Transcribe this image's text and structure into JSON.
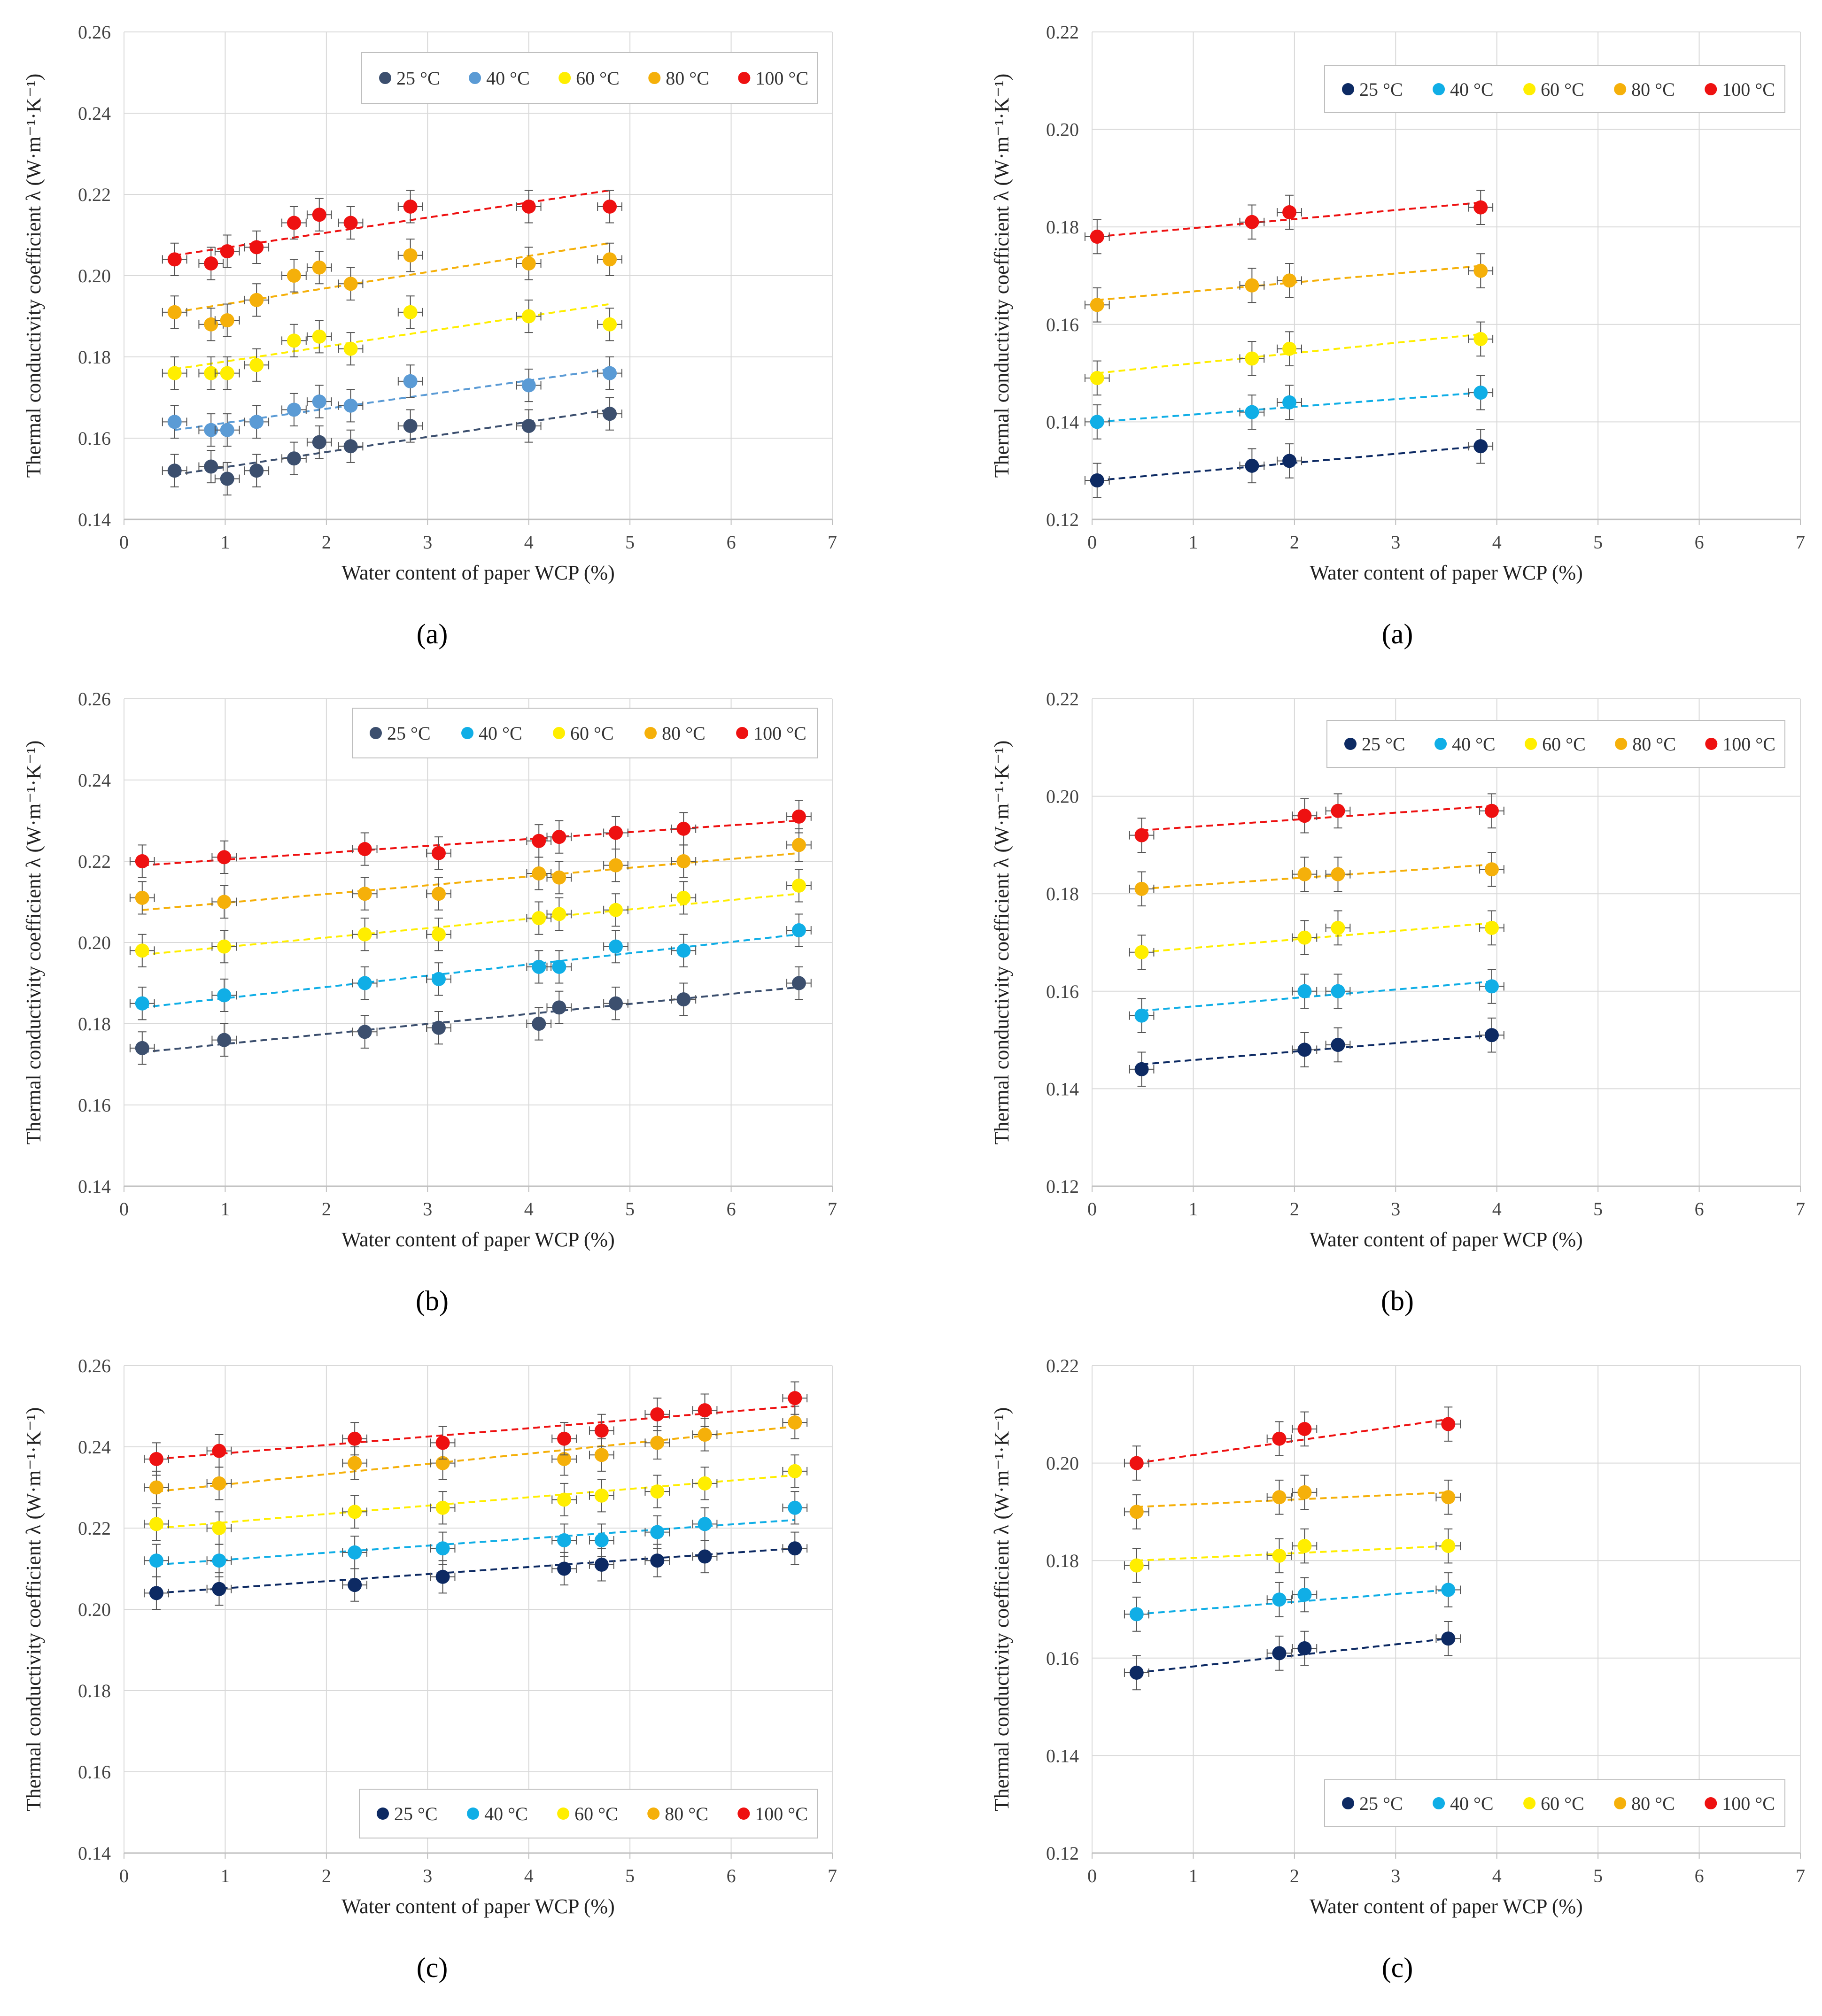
{
  "colors": {
    "25": "#1f3b6b",
    "40": "#2ab0e8",
    "60": "#ffee00",
    "80": "#f5b00a",
    "100": "#ee1111",
    "grid": "#d9d9d9",
    "axis": "#bfbfbf",
    "error": "#555555"
  },
  "chart_data": [
    {
      "id": "left-a",
      "type": "scatter",
      "caption": "(a)",
      "xlabel": "Water content of paper WCP (%)",
      "ylabel": "Thermal conductivity coefficient λ (W·m⁻¹·K⁻¹)",
      "xlim": [
        0,
        7
      ],
      "ylim": [
        0.14,
        0.26
      ],
      "xticks": [
        "0",
        "1",
        "2",
        "3",
        "4",
        "5",
        "6",
        "7"
      ],
      "yticks": [
        "0.14",
        "0.16",
        "0.18",
        "0.20",
        "0.22",
        "0.24",
        "0.26"
      ],
      "legend_position": "top-right",
      "series": [
        {
          "name": "25 °C",
          "color": "#3c4f6e",
          "x": [
            0.5,
            0.86,
            1.02,
            1.31,
            1.68,
            1.93,
            2.24,
            2.83,
            4.0,
            4.8
          ],
          "y": [
            0.152,
            0.153,
            0.15,
            0.152,
            0.155,
            0.159,
            0.158,
            0.163,
            0.163,
            0.166
          ],
          "fit": [
            0.151,
            0.167
          ]
        },
        {
          "name": "40 °C",
          "color": "#5b9bd5",
          "x": [
            0.5,
            0.86,
            1.02,
            1.31,
            1.68,
            1.93,
            2.24,
            2.83,
            4.0,
            4.8
          ],
          "y": [
            0.164,
            0.162,
            0.162,
            0.164,
            0.167,
            0.169,
            0.168,
            0.174,
            0.173,
            0.176
          ],
          "fit": [
            0.162,
            0.177
          ]
        },
        {
          "name": "60 °C",
          "color": "#ffee00",
          "x": [
            0.5,
            0.86,
            1.02,
            1.31,
            1.68,
            1.93,
            2.24,
            2.83,
            4.0,
            4.8
          ],
          "y": [
            0.176,
            0.176,
            0.176,
            0.178,
            0.184,
            0.185,
            0.182,
            0.191,
            0.19,
            0.188
          ],
          "fit": [
            0.177,
            0.193
          ]
        },
        {
          "name": "80 °C",
          "color": "#f5b00a",
          "x": [
            0.5,
            0.86,
            1.02,
            1.31,
            1.68,
            1.93,
            2.24,
            2.83,
            4.0,
            4.8
          ],
          "y": [
            0.191,
            0.188,
            0.189,
            0.194,
            0.2,
            0.202,
            0.198,
            0.205,
            0.203,
            0.204
          ],
          "fit": [
            0.191,
            0.208
          ]
        },
        {
          "name": "100 °C",
          "color": "#ee1111",
          "x": [
            0.5,
            0.86,
            1.02,
            1.31,
            1.68,
            1.93,
            2.24,
            2.83,
            4.0,
            4.8
          ],
          "y": [
            0.204,
            0.203,
            0.206,
            0.207,
            0.213,
            0.215,
            0.213,
            0.217,
            0.217,
            0.217
          ],
          "fit": [
            0.205,
            0.221
          ]
        }
      ]
    },
    {
      "id": "right-a",
      "type": "scatter",
      "caption": "(a)",
      "xlabel": "Water content of paper WCP (%)",
      "ylabel": "Thermal conductivity coefficient λ (W·m⁻¹·K⁻¹)",
      "xlim": [
        0,
        7
      ],
      "ylim": [
        0.12,
        0.22
      ],
      "xticks": [
        "0",
        "1",
        "2",
        "3",
        "4",
        "5",
        "6",
        "7"
      ],
      "yticks": [
        "0.12",
        "0.14",
        "0.16",
        "0.18",
        "0.20",
        "0.22"
      ],
      "legend_position": "top-right",
      "series": [
        {
          "name": "25 °C",
          "color": "#0d2a63",
          "x": [
            0.05,
            1.58,
            1.95,
            3.84
          ],
          "y": [
            0.128,
            0.131,
            0.132,
            0.135
          ],
          "fit": [
            0.128,
            0.135
          ]
        },
        {
          "name": "40 °C",
          "color": "#10aee6",
          "x": [
            0.05,
            1.58,
            1.95,
            3.84
          ],
          "y": [
            0.14,
            0.142,
            0.144,
            0.146
          ],
          "fit": [
            0.14,
            0.146
          ]
        },
        {
          "name": "60 °C",
          "color": "#ffee00",
          "x": [
            0.05,
            1.58,
            1.95,
            3.84
          ],
          "y": [
            0.149,
            0.153,
            0.155,
            0.157
          ],
          "fit": [
            0.15,
            0.158
          ]
        },
        {
          "name": "80 °C",
          "color": "#f5b00a",
          "x": [
            0.05,
            1.58,
            1.95,
            3.84
          ],
          "y": [
            0.164,
            0.168,
            0.169,
            0.171
          ],
          "fit": [
            0.165,
            0.172
          ]
        },
        {
          "name": "100 °C",
          "color": "#ee1111",
          "x": [
            0.05,
            1.58,
            1.95,
            3.84
          ],
          "y": [
            0.178,
            0.181,
            0.183,
            0.184
          ],
          "fit": [
            0.178,
            0.185
          ]
        }
      ]
    },
    {
      "id": "left-b",
      "type": "scatter",
      "caption": "(b)",
      "xlabel": "Water content of paper WCP (%)",
      "ylabel": "Thermal conductivity coefficient λ (W·m⁻¹·K⁻¹)",
      "xlim": [
        0,
        7
      ],
      "ylim": [
        0.14,
        0.26
      ],
      "xticks": [
        "0",
        "1",
        "2",
        "3",
        "4",
        "5",
        "6",
        "7"
      ],
      "yticks": [
        "0.14",
        "0.16",
        "0.18",
        "0.20",
        "0.22",
        "0.24",
        "0.26"
      ],
      "legend_position": "top-right",
      "series": [
        {
          "name": "25 °C",
          "color": "#3c4f6e",
          "x": [
            0.18,
            0.99,
            2.38,
            3.11,
            4.1,
            4.3,
            4.86,
            5.53,
            6.67
          ],
          "y": [
            0.174,
            0.176,
            0.178,
            0.179,
            0.18,
            0.184,
            0.185,
            0.186,
            0.19
          ],
          "fit": [
            0.173,
            0.189
          ]
        },
        {
          "name": "40 °C",
          "color": "#10aee6",
          "x": [
            0.18,
            0.99,
            2.38,
            3.11,
            4.1,
            4.3,
            4.86,
            5.53,
            6.67
          ],
          "y": [
            0.185,
            0.187,
            0.19,
            0.191,
            0.194,
            0.194,
            0.199,
            0.198,
            0.203
          ],
          "fit": [
            0.184,
            0.202
          ]
        },
        {
          "name": "60 °C",
          "color": "#ffee00",
          "x": [
            0.18,
            0.99,
            2.38,
            3.11,
            4.1,
            4.3,
            4.86,
            5.53,
            6.67
          ],
          "y": [
            0.198,
            0.199,
            0.202,
            0.202,
            0.206,
            0.207,
            0.208,
            0.211,
            0.214
          ],
          "fit": [
            0.197,
            0.212
          ]
        },
        {
          "name": "80 °C",
          "color": "#f5b00a",
          "x": [
            0.18,
            0.99,
            2.38,
            3.11,
            4.1,
            4.3,
            4.86,
            5.53,
            6.67
          ],
          "y": [
            0.211,
            0.21,
            0.212,
            0.212,
            0.217,
            0.216,
            0.219,
            0.22,
            0.224
          ],
          "fit": [
            0.208,
            0.222
          ]
        },
        {
          "name": "100 °C",
          "color": "#ee1111",
          "x": [
            0.18,
            0.99,
            2.38,
            3.11,
            4.1,
            4.3,
            4.86,
            5.53,
            6.67
          ],
          "y": [
            0.22,
            0.221,
            0.223,
            0.222,
            0.225,
            0.226,
            0.227,
            0.228,
            0.231
          ],
          "fit": [
            0.219,
            0.23
          ]
        }
      ]
    },
    {
      "id": "right-b",
      "type": "scatter",
      "caption": "(b)",
      "xlabel": "Water content of paper WCP (%)",
      "ylabel": "Thermal conductivity coefficient λ (W·m⁻¹·K⁻¹)",
      "xlim": [
        0,
        7
      ],
      "ylim": [
        0.12,
        0.22
      ],
      "xticks": [
        "0",
        "1",
        "2",
        "3",
        "4",
        "5",
        "6",
        "7"
      ],
      "yticks": [
        "0.12",
        "0.14",
        "0.16",
        "0.18",
        "0.20",
        "0.22"
      ],
      "legend_position": "top-right",
      "series": [
        {
          "name": "25 °C",
          "color": "#0d2a63",
          "x": [
            0.49,
            2.1,
            2.43,
            3.95
          ],
          "y": [
            0.144,
            0.148,
            0.149,
            0.151
          ],
          "fit": [
            0.145,
            0.151
          ]
        },
        {
          "name": "40 °C",
          "color": "#10aee6",
          "x": [
            0.49,
            2.1,
            2.43,
            3.95
          ],
          "y": [
            0.155,
            0.16,
            0.16,
            0.161
          ],
          "fit": [
            0.156,
            0.162
          ]
        },
        {
          "name": "60 °C",
          "color": "#ffee00",
          "x": [
            0.49,
            2.1,
            2.43,
            3.95
          ],
          "y": [
            0.168,
            0.171,
            0.173,
            0.173
          ],
          "fit": [
            0.168,
            0.174
          ]
        },
        {
          "name": "80 °C",
          "color": "#f5b00a",
          "x": [
            0.49,
            2.1,
            2.43,
            3.95
          ],
          "y": [
            0.181,
            0.184,
            0.184,
            0.185
          ],
          "fit": [
            0.181,
            0.186
          ]
        },
        {
          "name": "100 °C",
          "color": "#ee1111",
          "x": [
            0.49,
            2.1,
            2.43,
            3.95
          ],
          "y": [
            0.192,
            0.196,
            0.197,
            0.197
          ],
          "fit": [
            0.193,
            0.198
          ]
        }
      ]
    },
    {
      "id": "left-c",
      "type": "scatter",
      "caption": "(c)",
      "xlabel": "Water content of paper WCP (%)",
      "ylabel": "Thermal conductivity coefficient λ (W·m⁻¹·K⁻¹)",
      "xlim": [
        0,
        7
      ],
      "ylim": [
        0.14,
        0.26
      ],
      "xticks": [
        "0",
        "1",
        "2",
        "3",
        "4",
        "5",
        "6",
        "7"
      ],
      "yticks": [
        "0.14",
        "0.16",
        "0.18",
        "0.20",
        "0.22",
        "0.24",
        "0.26"
      ],
      "legend_position": "bottom-right",
      "series": [
        {
          "name": "25 °C",
          "color": "#0d2a63",
          "x": [
            0.32,
            0.94,
            2.28,
            3.15,
            4.35,
            4.72,
            5.27,
            5.74,
            6.63
          ],
          "y": [
            0.204,
            0.205,
            0.206,
            0.208,
            0.21,
            0.211,
            0.212,
            0.213,
            0.215
          ],
          "fit": [
            0.204,
            0.215
          ]
        },
        {
          "name": "40 °C",
          "color": "#10aee6",
          "x": [
            0.32,
            0.94,
            2.28,
            3.15,
            4.35,
            4.72,
            5.27,
            5.74,
            6.63
          ],
          "y": [
            0.212,
            0.212,
            0.214,
            0.215,
            0.217,
            0.217,
            0.219,
            0.221,
            0.225
          ],
          "fit": [
            0.211,
            0.222
          ]
        },
        {
          "name": "60 °C",
          "color": "#ffee00",
          "x": [
            0.32,
            0.94,
            2.28,
            3.15,
            4.35,
            4.72,
            5.27,
            5.74,
            6.63
          ],
          "y": [
            0.221,
            0.22,
            0.224,
            0.225,
            0.227,
            0.228,
            0.229,
            0.231,
            0.234
          ],
          "fit": [
            0.22,
            0.233
          ]
        },
        {
          "name": "80 °C",
          "color": "#f5b00a",
          "x": [
            0.32,
            0.94,
            2.28,
            3.15,
            4.35,
            4.72,
            5.27,
            5.74,
            6.63
          ],
          "y": [
            0.23,
            0.231,
            0.236,
            0.236,
            0.237,
            0.238,
            0.241,
            0.243,
            0.246
          ],
          "fit": [
            0.229,
            0.245
          ]
        },
        {
          "name": "100 °C",
          "color": "#ee1111",
          "x": [
            0.32,
            0.94,
            2.28,
            3.15,
            4.35,
            4.72,
            5.27,
            5.74,
            6.63
          ],
          "y": [
            0.237,
            0.239,
            0.242,
            0.241,
            0.242,
            0.244,
            0.248,
            0.249,
            0.252
          ],
          "fit": [
            0.237,
            0.25
          ]
        }
      ]
    },
    {
      "id": "right-c",
      "type": "scatter",
      "caption": "(c)",
      "xlabel": "Water content of paper WCP (%)",
      "ylabel": "Thermal conductivity coefficient λ (W·m⁻¹·K⁻¹)",
      "xlim": [
        0,
        7
      ],
      "ylim": [
        0.12,
        0.22
      ],
      "xticks": [
        "0",
        "1",
        "2",
        "3",
        "4",
        "5",
        "6",
        "7"
      ],
      "yticks": [
        "0.12",
        "0.14",
        "0.16",
        "0.18",
        "0.20",
        "0.22"
      ],
      "legend_position": "bottom-right",
      "series": [
        {
          "name": "25 °C",
          "color": "#0d2a63",
          "x": [
            0.44,
            1.85,
            2.1,
            3.52
          ],
          "y": [
            0.157,
            0.161,
            0.162,
            0.164
          ],
          "fit": [
            0.157,
            0.164
          ]
        },
        {
          "name": "40 °C",
          "color": "#10aee6",
          "x": [
            0.44,
            1.85,
            2.1,
            3.52
          ],
          "y": [
            0.169,
            0.172,
            0.173,
            0.174
          ],
          "fit": [
            0.169,
            0.174
          ]
        },
        {
          "name": "60 °C",
          "color": "#ffee00",
          "x": [
            0.44,
            1.85,
            2.1,
            3.52
          ],
          "y": [
            0.179,
            0.181,
            0.183,
            0.183
          ],
          "fit": [
            0.18,
            0.183
          ]
        },
        {
          "name": "80 °C",
          "color": "#f5b00a",
          "x": [
            0.44,
            1.85,
            2.1,
            3.52
          ],
          "y": [
            0.19,
            0.193,
            0.194,
            0.193
          ],
          "fit": [
            0.191,
            0.194
          ]
        },
        {
          "name": "100 °C",
          "color": "#ee1111",
          "x": [
            0.44,
            1.85,
            2.1,
            3.52
          ],
          "y": [
            0.2,
            0.205,
            0.207,
            0.208
          ],
          "fit": [
            0.2,
            0.209
          ]
        }
      ]
    }
  ]
}
